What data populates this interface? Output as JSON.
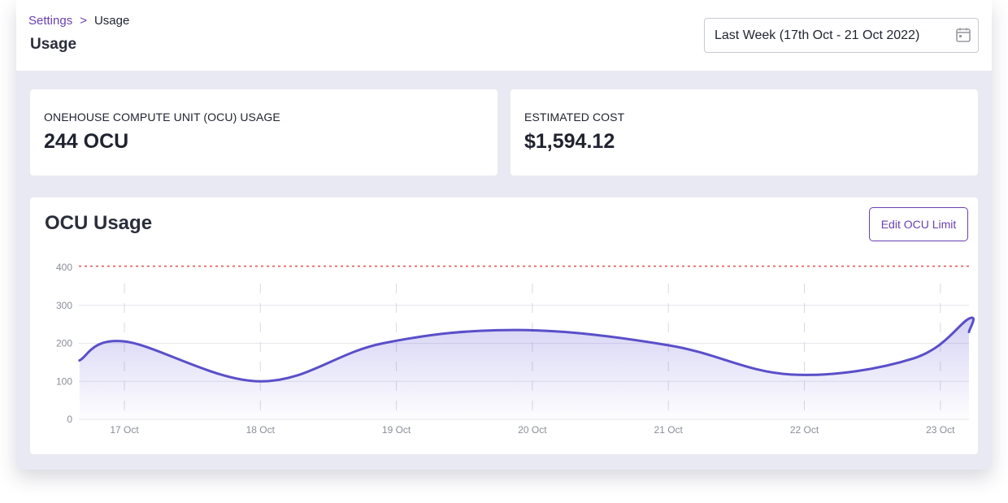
{
  "breadcrumb": {
    "parent": "Settings",
    "separator": ">",
    "current": "Usage"
  },
  "page": {
    "title": "Usage"
  },
  "date_range": {
    "label": "Last Week (17th Oct - 21 Oct 2022)",
    "icon": "calendar-icon"
  },
  "stats": {
    "ocu": {
      "label": "ONEHOUSE COMPUTE UNIT (OCU) USAGE",
      "value": "244 OCU"
    },
    "cost": {
      "label": "ESTIMATED COST",
      "value": "$1,594.12"
    }
  },
  "chart": {
    "title": "OCU Usage",
    "edit_button": "Edit OCU Limit"
  },
  "colors": {
    "accent": "#6a3fb0",
    "line": "#5a4fc9",
    "limit": "#e05a5a"
  },
  "chart_data": {
    "type": "area",
    "title": "OCU Usage",
    "categories": [
      "17 Oct",
      "18 Oct",
      "19 Oct",
      "20 Oct",
      "21 Oct",
      "22 Oct",
      "23 Oct"
    ],
    "x": [
      -0.33,
      0.0,
      1.0,
      1.9,
      2.9,
      4.0,
      4.9,
      5.8,
      6.6,
      7.1
    ],
    "y": [
      155,
      205,
      100,
      200,
      235,
      195,
      118,
      160,
      265,
      230
    ],
    "ylim": [
      0,
      400
    ],
    "yticks": [
      0,
      100,
      200,
      300,
      400
    ],
    "limit_line": 403,
    "grid": true,
    "legend": "none"
  }
}
